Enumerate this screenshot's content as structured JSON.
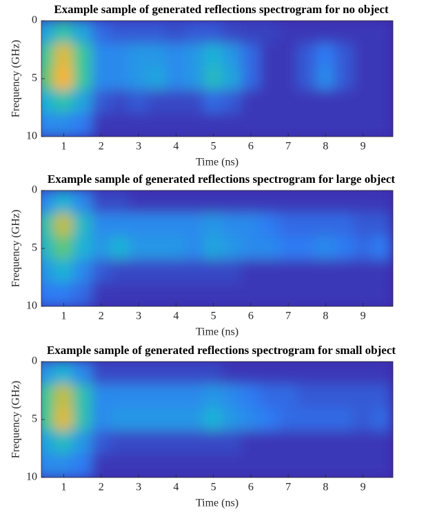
{
  "chart_data": [
    {
      "type": "heatmap",
      "title": "Example sample of generated reflections spectrogram for no object",
      "x_label": "Time (ns)",
      "y_label": "Frequency (GHz)",
      "xlim": [
        0.4,
        9.8
      ],
      "ylim": [
        0,
        10
      ],
      "y_reversed": true,
      "xticks": [
        1,
        2,
        3,
        4,
        5,
        6,
        7,
        8,
        9
      ],
      "yticks": [
        0,
        5,
        10
      ],
      "colormap": "parula",
      "clim": [
        0,
        1
      ],
      "x": [
        0.5,
        1,
        1.5,
        2,
        2.5,
        3,
        3.5,
        4,
        4.5,
        5,
        5.5,
        6,
        6.5,
        7,
        7.5,
        8,
        8.5,
        9,
        9.5
      ],
      "y": [
        1,
        3,
        5,
        7,
        9
      ],
      "z": [
        [
          0.4,
          0.55,
          0.4,
          0.2,
          0.15,
          0.15,
          0.15,
          0.12,
          0.15,
          0.15,
          0.1,
          0.08,
          0.08,
          0.05,
          0.05,
          0.05,
          0.05,
          0.05,
          0.05
        ],
        [
          0.6,
          0.85,
          0.6,
          0.3,
          0.3,
          0.35,
          0.35,
          0.3,
          0.35,
          0.45,
          0.35,
          0.2,
          0.05,
          0.05,
          0.15,
          0.25,
          0.15,
          0.05,
          0.05
        ],
        [
          0.65,
          0.9,
          0.6,
          0.3,
          0.3,
          0.35,
          0.4,
          0.3,
          0.35,
          0.5,
          0.4,
          0.2,
          0.05,
          0.05,
          0.15,
          0.3,
          0.15,
          0.05,
          0.05
        ],
        [
          0.45,
          0.55,
          0.4,
          0.15,
          0.1,
          0.15,
          0.1,
          0.1,
          0.1,
          0.2,
          0.15,
          0.05,
          0.05,
          0.05,
          0.05,
          0.05,
          0.05,
          0.05,
          0.05
        ],
        [
          0.3,
          0.3,
          0.25,
          0.05,
          0.05,
          0.05,
          0.05,
          0.05,
          0.05,
          0.05,
          0.05,
          0.05,
          0.05,
          0.05,
          0.05,
          0.05,
          0.05,
          0.05,
          0.05
        ]
      ]
    },
    {
      "type": "heatmap",
      "title": "Example sample of generated reflections spectrogram for large object",
      "x_label": "Time (ns)",
      "y_label": "Frequency (GHz)",
      "xlim": [
        0.4,
        9.8
      ],
      "ylim": [
        0,
        10
      ],
      "y_reversed": true,
      "xticks": [
        1,
        2,
        3,
        4,
        5,
        6,
        7,
        8,
        9
      ],
      "yticks": [
        0,
        5,
        10
      ],
      "colormap": "parula",
      "clim": [
        0,
        1
      ],
      "x": [
        0.5,
        1,
        1.5,
        2,
        2.5,
        3,
        3.5,
        4,
        4.5,
        5,
        5.5,
        6,
        6.5,
        7,
        7.5,
        8,
        8.5,
        9,
        9.5
      ],
      "y": [
        1,
        3,
        5,
        7,
        9
      ],
      "z": [
        [
          0.3,
          0.45,
          0.3,
          0.1,
          0.1,
          0.05,
          0.05,
          0.05,
          0.05,
          0.05,
          0.05,
          0.05,
          0.05,
          0.05,
          0.05,
          0.05,
          0.05,
          0.05,
          0.05
        ],
        [
          0.55,
          0.8,
          0.5,
          0.3,
          0.3,
          0.3,
          0.3,
          0.3,
          0.3,
          0.35,
          0.3,
          0.3,
          0.25,
          0.2,
          0.2,
          0.2,
          0.2,
          0.15,
          0.15
        ],
        [
          0.5,
          0.65,
          0.45,
          0.35,
          0.45,
          0.35,
          0.35,
          0.35,
          0.3,
          0.4,
          0.35,
          0.3,
          0.3,
          0.25,
          0.25,
          0.3,
          0.25,
          0.2,
          0.25
        ],
        [
          0.35,
          0.45,
          0.3,
          0.15,
          0.1,
          0.1,
          0.1,
          0.1,
          0.1,
          0.1,
          0.1,
          0.05,
          0.05,
          0.05,
          0.05,
          0.05,
          0.05,
          0.05,
          0.05
        ],
        [
          0.25,
          0.25,
          0.2,
          0.05,
          0.05,
          0.05,
          0.05,
          0.05,
          0.05,
          0.05,
          0.05,
          0.05,
          0.05,
          0.05,
          0.05,
          0.05,
          0.05,
          0.05,
          0.05
        ]
      ]
    },
    {
      "type": "heatmap",
      "title": "Example sample of generated reflections spectrogram for small object",
      "x_label": "Time (ns)",
      "y_label": "Frequency (GHz)",
      "xlim": [
        0.4,
        9.8
      ],
      "ylim": [
        0,
        10
      ],
      "y_reversed": true,
      "xticks": [
        1,
        2,
        3,
        4,
        5,
        6,
        7,
        8,
        9
      ],
      "yticks": [
        0,
        5,
        10
      ],
      "colormap": "parula",
      "clim": [
        0,
        1
      ],
      "x": [
        0.5,
        1,
        1.5,
        2,
        2.5,
        3,
        3.5,
        4,
        4.5,
        5,
        5.5,
        6,
        6.5,
        7,
        7.5,
        8,
        8.5,
        9,
        9.5
      ],
      "y": [
        1,
        3,
        5,
        7,
        9
      ],
      "z": [
        [
          0.35,
          0.45,
          0.3,
          0.1,
          0.1,
          0.1,
          0.1,
          0.1,
          0.1,
          0.1,
          0.05,
          0.05,
          0.05,
          0.05,
          0.05,
          0.05,
          0.05,
          0.05,
          0.05
        ],
        [
          0.6,
          0.8,
          0.55,
          0.3,
          0.3,
          0.3,
          0.3,
          0.3,
          0.3,
          0.35,
          0.3,
          0.25,
          0.2,
          0.2,
          0.15,
          0.15,
          0.15,
          0.15,
          0.15
        ],
        [
          0.6,
          0.85,
          0.55,
          0.3,
          0.35,
          0.35,
          0.35,
          0.35,
          0.35,
          0.45,
          0.35,
          0.3,
          0.25,
          0.2,
          0.2,
          0.2,
          0.2,
          0.15,
          0.2
        ],
        [
          0.4,
          0.5,
          0.35,
          0.15,
          0.1,
          0.1,
          0.1,
          0.1,
          0.1,
          0.1,
          0.1,
          0.05,
          0.05,
          0.05,
          0.05,
          0.05,
          0.05,
          0.05,
          0.05
        ],
        [
          0.3,
          0.3,
          0.25,
          0.05,
          0.05,
          0.05,
          0.05,
          0.05,
          0.05,
          0.05,
          0.05,
          0.05,
          0.05,
          0.05,
          0.05,
          0.05,
          0.05,
          0.05,
          0.05
        ]
      ]
    }
  ]
}
